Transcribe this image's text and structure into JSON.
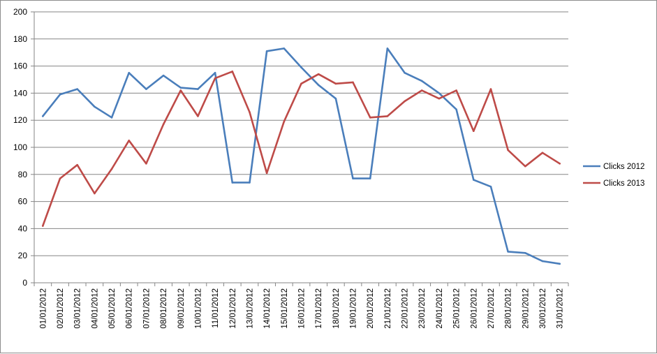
{
  "chart_data": {
    "type": "line",
    "title": "",
    "xlabel": "",
    "ylabel": "",
    "ylim": [
      0,
      200
    ],
    "ytick_step": 20,
    "grid": true,
    "legend_position": "right",
    "categories": [
      "01/01/2012",
      "02/01/2012",
      "03/01/2012",
      "04/01/2012",
      "05/01/2012",
      "06/01/2012",
      "07/01/2012",
      "08/01/2012",
      "09/01/2012",
      "10/01/2012",
      "11/01/2012",
      "12/01/2012",
      "13/01/2012",
      "14/01/2012",
      "15/01/2012",
      "16/01/2012",
      "17/01/2012",
      "18/01/2012",
      "19/01/2012",
      "20/01/2012",
      "21/01/2012",
      "22/01/2012",
      "23/01/2012",
      "24/01/2012",
      "25/01/2012",
      "26/01/2012",
      "27/01/2012",
      "28/01/2012",
      "29/01/2012",
      "30/01/2012",
      "31/01/2012"
    ],
    "series": [
      {
        "name": "Clicks 2012",
        "color": "#4a7ebb",
        "values": [
          123,
          139,
          143,
          130,
          122,
          155,
          143,
          153,
          144,
          143,
          155,
          74,
          74,
          171,
          173,
          159,
          146,
          136,
          77,
          77,
          173,
          155,
          149,
          140,
          128,
          76,
          71,
          23,
          22,
          16,
          14
        ]
      },
      {
        "name": "Clicks 2013",
        "color": "#be4b48",
        "values": [
          42,
          77,
          87,
          66,
          84,
          105,
          88,
          117,
          142,
          123,
          151,
          156,
          126,
          81,
          119,
          147,
          154,
          147,
          148,
          122,
          123,
          134,
          142,
          136,
          142,
          112,
          143,
          98,
          86,
          96,
          88
        ]
      }
    ]
  }
}
